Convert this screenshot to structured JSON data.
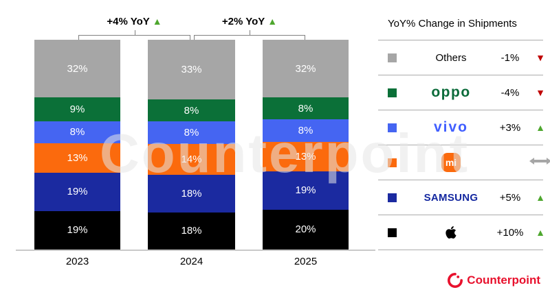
{
  "chart_data": {
    "type": "bar",
    "stacked": true,
    "unit": "%",
    "order": "top-to-bottom",
    "categories": [
      "2023",
      "2024",
      "2025"
    ],
    "series": [
      {
        "name": "Others",
        "color": "#A6A6A6",
        "values": [
          32,
          33,
          32
        ]
      },
      {
        "name": "OPPO",
        "color": "#0B7038",
        "values": [
          9,
          8,
          8
        ]
      },
      {
        "name": "vivo",
        "color": "#4565F2",
        "values": [
          8,
          8,
          8
        ]
      },
      {
        "name": "Xiaomi",
        "color": "#FB6A0D",
        "values": [
          13,
          14,
          13
        ]
      },
      {
        "name": "Samsung",
        "color": "#1B2AA0",
        "values": [
          19,
          18,
          19
        ]
      },
      {
        "name": "Apple",
        "color": "#000000",
        "values": [
          19,
          18,
          20
        ]
      }
    ],
    "annotations": [
      {
        "label": "+4% YoY",
        "direction": "up",
        "between": [
          "2023",
          "2024"
        ]
      },
      {
        "label": "+2% YoY",
        "direction": "up",
        "between": [
          "2024",
          "2025"
        ]
      }
    ],
    "ylim": [
      0,
      100
    ],
    "grid": false
  },
  "legend": {
    "title": "YoY% Change in Shipments",
    "rows": [
      {
        "brand": "Others",
        "logo_text": "Others",
        "change": "-1%",
        "direction": "down"
      },
      {
        "brand": "OPPO",
        "logo_text": "oppo",
        "change": "-4%",
        "direction": "down"
      },
      {
        "brand": "vivo",
        "logo_text": "vivo",
        "change": "+3%",
        "direction": "up"
      },
      {
        "brand": "Xiaomi",
        "logo_text": "mi",
        "change": "",
        "direction": "flat"
      },
      {
        "brand": "Samsung",
        "logo_text": "SAMSUNG",
        "change": "+5%",
        "direction": "up"
      },
      {
        "brand": "Apple",
        "logo_text": "",
        "change": "+10%",
        "direction": "up"
      }
    ]
  },
  "icons": {
    "up": "▲",
    "down": "▼"
  },
  "colors": {
    "positive": "#4EA72E",
    "negative": "#C00000",
    "neutral_arrow": "#A6A6A6",
    "brand_red": "#E8112D",
    "axis_gray": "#C9C9C9"
  },
  "watermark": {
    "text": "Counterpoint"
  },
  "footer": {
    "brand": "Counterpoint"
  }
}
